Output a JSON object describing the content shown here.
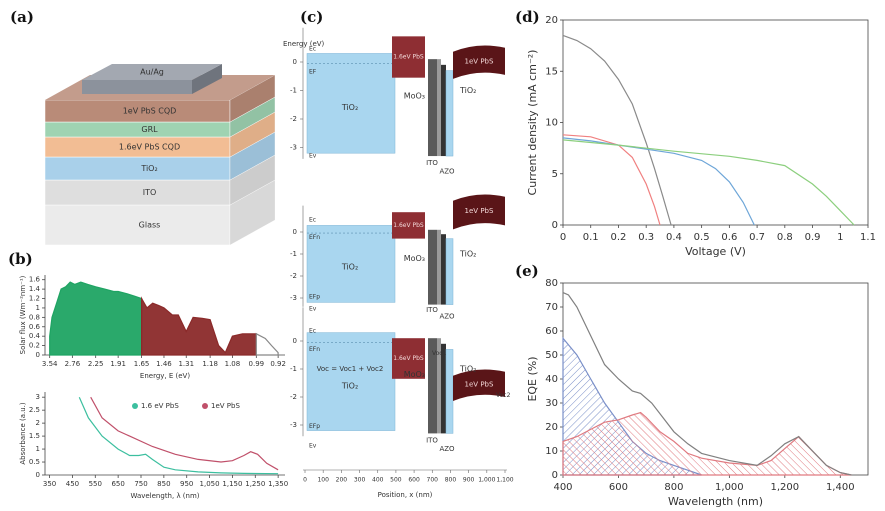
{
  "panel_labels": [
    "(a)",
    "(b)",
    "(c)",
    "(d)",
    "(e)"
  ],
  "device_stack": {
    "layers": [
      {
        "label": "Au/Ag",
        "color": "#8c929c"
      },
      {
        "label": "1eV PbS CQD",
        "color": "#b98b78"
      },
      {
        "label": "GRL",
        "color": "#9fd3b2"
      },
      {
        "label": "1.6eV PbS CQD",
        "color": "#f2bd94"
      },
      {
        "label": "TiO₂",
        "color": "#a9d0ea"
      },
      {
        "label": "ITO",
        "color": "#dedede"
      },
      {
        "label": "Glass",
        "color": "#ebebeb"
      }
    ]
  },
  "band_diagram": {
    "y_label": "Energy (eV)",
    "yticks": [
      0,
      -1,
      -2,
      -3
    ],
    "x_label": "Position, x (nm)",
    "xlim": [
      0,
      1100
    ],
    "xticks": [
      0,
      100,
      200,
      300,
      400,
      500,
      600,
      700,
      800,
      900,
      {
        "value": 1000,
        "label": "1,000"
      },
      {
        "value": 1100,
        "label": "1,100"
      }
    ],
    "panels": [
      {
        "levels": [
          "Ec",
          "EF",
          "Ev"
        ],
        "layers": [
          "TiO₂",
          "1.6eV PbS",
          "1eV PbS",
          "MoO₃",
          "ITO",
          "AZO",
          "TiO₂"
        ]
      },
      {
        "levels": [
          "Ec",
          "EFn",
          "EFp",
          "Ev"
        ],
        "layers": [
          "TiO₂",
          "1.6eV PbS",
          "1eV PbS",
          "MoO₃",
          "ITO",
          "AZO",
          "TiO₂"
        ]
      },
      {
        "levels": [
          "Ec",
          "EFn",
          "EFp",
          "Ev"
        ],
        "layers": [
          "TiO₂",
          "1.6eV PbS",
          "1eV PbS",
          "MoO₃",
          "ITO",
          "AZO",
          "TiO₂"
        ],
        "voltages": [
          "Voc = Voc1 + Voc2",
          "Voc1",
          "Voc2"
        ]
      }
    ]
  },
  "chart_data": [
    {
      "type": "area",
      "y_label": "Solar flux (Wm⁻²nm⁻¹)",
      "x_label": "Energy, E (eV)",
      "xscale": "reciprocal",
      "xlim": [
        3.76,
        0.9
      ],
      "ylim": [
        0,
        1.7
      ],
      "xticks": [
        3.54,
        2.76,
        2.25,
        1.91,
        1.65,
        1.46,
        1.31,
        1.18,
        1.08,
        0.99,
        0.92
      ],
      "yticks": [
        0,
        0.2,
        0.4,
        0.6,
        0.8,
        1,
        1.2,
        1.4,
        1.6
      ],
      "series": [
        {
          "color": "#1fa463",
          "x": [
            3.54,
            3.44,
            3.26,
            3.1,
            2.95,
            2.82,
            2.7,
            2.55,
            2.4,
            2.25,
            2.1,
            1.97,
            1.91,
            1.8,
            1.72,
            1.65
          ],
          "values": [
            0.4,
            0.8,
            1.1,
            1.4,
            1.45,
            1.55,
            1.5,
            1.55,
            1.5,
            1.45,
            1.4,
            1.35,
            1.35,
            1.3,
            1.25,
            1.2
          ]
        },
        {
          "color": "#8b2a2a",
          "x": [
            1.65,
            1.6,
            1.55,
            1.5,
            1.46,
            1.4,
            1.36,
            1.31,
            1.27,
            1.22,
            1.18,
            1.14,
            1.11,
            1.08,
            1.04,
            0.99
          ],
          "values": [
            1.2,
            1.0,
            1.1,
            1.05,
            1.0,
            0.85,
            0.85,
            0.5,
            0.8,
            0.78,
            0.75,
            0.2,
            0.05,
            0.4,
            0.45,
            0.45
          ]
        },
        {
          "color": "#ffffff",
          "edge": "#888888",
          "x": [
            0.99,
            0.96,
            0.94,
            0.92
          ],
          "values": [
            0.45,
            0.35,
            0.2,
            0.05
          ]
        }
      ]
    },
    {
      "type": "line",
      "y_label": "Absorbance (a.u.)",
      "x_label": "Wavelength, λ (nm)",
      "xlim": [
        330,
        1380
      ],
      "ylim": [
        0,
        3.2
      ],
      "xticks": [
        350,
        450,
        550,
        650,
        750,
        850,
        950,
        {
          "value": 1050,
          "label": "1,050"
        },
        {
          "value": 1150,
          "label": "1,150"
        },
        {
          "value": 1250,
          "label": "1,250"
        },
        {
          "value": 1350,
          "label": "1,350"
        }
      ],
      "yticks": [
        0,
        0.5,
        1,
        1.5,
        2,
        2.5,
        3
      ],
      "series": [
        {
          "name": "1.6 eV PbS",
          "color": "#3cbf9f",
          "x": [
            480,
            520,
            580,
            650,
            700,
            740,
            770,
            800,
            850,
            900,
            1000,
            1100,
            1200,
            1350
          ],
          "values": [
            3,
            2.2,
            1.5,
            1.0,
            0.75,
            0.75,
            0.8,
            0.6,
            0.3,
            0.2,
            0.12,
            0.08,
            0.06,
            0.05
          ]
        },
        {
          "name": "1eV PbS",
          "color": "#c0506a",
          "x": [
            530,
            580,
            650,
            700,
            800,
            900,
            1000,
            1100,
            1150,
            1200,
            1230,
            1260,
            1300,
            1350
          ],
          "values": [
            3,
            2.2,
            1.7,
            1.5,
            1.1,
            0.8,
            0.6,
            0.5,
            0.55,
            0.75,
            0.9,
            0.8,
            0.45,
            0.2
          ]
        }
      ]
    },
    {
      "type": "line",
      "frame": true,
      "y_label": "Current density (mA cm⁻²)",
      "x_label": "Voltage (V)",
      "xlim": [
        0,
        1.1
      ],
      "ylim": [
        0,
        20
      ],
      "xticks": [
        0,
        0.1,
        0.2,
        0.3,
        0.4,
        0.5,
        0.6,
        0.7,
        0.8,
        0.9,
        1,
        1.1
      ],
      "yticks": [
        0,
        5,
        10,
        15,
        20
      ],
      "series": [
        {
          "color": "#8a8a8a",
          "x": [
            0,
            0.05,
            0.1,
            0.15,
            0.2,
            0.25,
            0.3,
            0.33,
            0.36,
            0.39
          ],
          "values": [
            18.5,
            18,
            17.2,
            16,
            14.2,
            11.8,
            8,
            5.5,
            2.8,
            0
          ]
        },
        {
          "color": "#f08080",
          "x": [
            0,
            0.1,
            0.2,
            0.25,
            0.3,
            0.33,
            0.35
          ],
          "values": [
            8.8,
            8.6,
            7.8,
            6.6,
            4,
            1.8,
            0
          ]
        },
        {
          "color": "#6ea6d8",
          "x": [
            0,
            0.1,
            0.2,
            0.3,
            0.4,
            0.5,
            0.55,
            0.6,
            0.65,
            0.69
          ],
          "values": [
            8.5,
            8.2,
            7.8,
            7.4,
            7,
            6.3,
            5.5,
            4.2,
            2.2,
            0
          ]
        },
        {
          "color": "#8ccf7e",
          "x": [
            0,
            0.2,
            0.4,
            0.6,
            0.7,
            0.8,
            0.9,
            0.95,
            1,
            1.05
          ],
          "values": [
            8.3,
            7.8,
            7.2,
            6.7,
            6.3,
            5.8,
            4,
            2.8,
            1.4,
            0
          ]
        }
      ]
    },
    {
      "type": "area",
      "frame": true,
      "y_label": "EQE (%)",
      "x_label": "Wavelength (nm)",
      "xlim": [
        400,
        1500
      ],
      "ylim": [
        0,
        80
      ],
      "xticks": [
        400,
        600,
        800,
        {
          "value": 1000,
          "label": "1,000"
        },
        {
          "value": 1200,
          "label": "1,200"
        },
        {
          "value": 1400,
          "label": "1,400"
        }
      ],
      "yticks": [
        0,
        10,
        20,
        30,
        40,
        50,
        60,
        70,
        80
      ],
      "series": [
        {
          "color": "#7a8fc8",
          "fill": "hatch",
          "x": [
            400,
            450,
            500,
            550,
            600,
            650,
            700,
            750,
            800,
            850,
            900
          ],
          "values": [
            57,
            50,
            40,
            30,
            22,
            14,
            9,
            6,
            4,
            2,
            0
          ]
        },
        {
          "color": "#e07a80",
          "fill": "hatch",
          "x": [
            400,
            450,
            500,
            550,
            600,
            650,
            680,
            700,
            750,
            800,
            850,
            900,
            1000,
            1100,
            1150,
            1200,
            1250,
            1300,
            1350,
            1400,
            1440
          ],
          "values": [
            14,
            16,
            19,
            22,
            23,
            25,
            26,
            24,
            18,
            14,
            9,
            7,
            5,
            4,
            6,
            11,
            16,
            10,
            4,
            1,
            0
          ]
        },
        {
          "color": "#808080",
          "fill": "none",
          "x": [
            400,
            420,
            450,
            500,
            550,
            600,
            650,
            680,
            720,
            760,
            800,
            850,
            900,
            1000,
            1100,
            1150,
            1200,
            1250,
            1300,
            1350,
            1400,
            1440
          ],
          "values": [
            76,
            75,
            70,
            58,
            46,
            40,
            35,
            34,
            30,
            24,
            18,
            13,
            9,
            6,
            4,
            8,
            13,
            16,
            10,
            4,
            1,
            0
          ]
        }
      ]
    }
  ]
}
